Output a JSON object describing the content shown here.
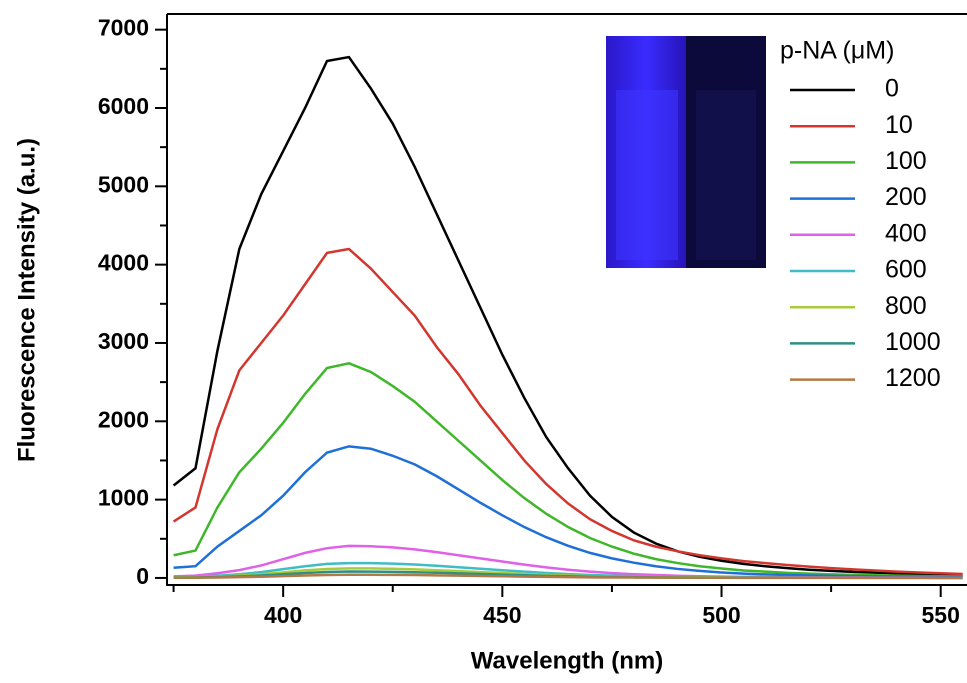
{
  "chart_data": {
    "type": "line",
    "xlabel": "Wavelength (nm)",
    "ylabel": "Fluorescence Intensity (a.u.)",
    "legend_title": "p-NA (μM)",
    "legend_position": "upper right",
    "xlim": [
      373.5,
      556
    ],
    "ylim": [
      -90,
      7200
    ],
    "xticks": [
      400,
      450,
      500,
      550
    ],
    "xminor_ticks": [
      375,
      425,
      475,
      525
    ],
    "yticks": [
      0,
      1000,
      2000,
      3000,
      4000,
      5000,
      6000,
      7000
    ],
    "yminor_ticks": [
      500,
      1500,
      2500,
      3500,
      4500,
      5500,
      6500
    ],
    "x": [
      375,
      380,
      385,
      390,
      395,
      400,
      405,
      410,
      415,
      420,
      425,
      430,
      435,
      440,
      445,
      450,
      455,
      460,
      465,
      470,
      475,
      480,
      485,
      490,
      495,
      500,
      505,
      510,
      515,
      520,
      525,
      530,
      535,
      540,
      545,
      550,
      555
    ],
    "series": [
      {
        "name": "0",
        "color": "#000000",
        "values": [
          1180,
          1400,
          2900,
          4200,
          4900,
          5450,
          6000,
          6600,
          6650,
          6250,
          5800,
          5250,
          4650,
          4050,
          3450,
          2850,
          2300,
          1800,
          1400,
          1050,
          780,
          580,
          440,
          340,
          270,
          220,
          180,
          150,
          125,
          105,
          90,
          78,
          68,
          58,
          50,
          44,
          38
        ]
      },
      {
        "name": "10",
        "color": "#d2372f",
        "values": [
          720,
          900,
          1900,
          2650,
          3000,
          3350,
          3750,
          4150,
          4200,
          3950,
          3650,
          3350,
          2950,
          2600,
          2200,
          1850,
          1500,
          1200,
          950,
          750,
          600,
          480,
          400,
          340,
          290,
          250,
          215,
          190,
          165,
          145,
          125,
          110,
          95,
          80,
          70,
          60,
          50
        ]
      },
      {
        "name": "100",
        "color": "#3fb72a",
        "values": [
          290,
          350,
          900,
          1350,
          1650,
          1980,
          2350,
          2680,
          2740,
          2630,
          2450,
          2250,
          2000,
          1750,
          1500,
          1250,
          1020,
          820,
          650,
          510,
          400,
          310,
          240,
          190,
          150,
          120,
          95,
          80,
          65,
          55,
          45,
          40,
          35,
          30,
          25,
          22,
          20
        ]
      },
      {
        "name": "200",
        "color": "#1f6fd8",
        "values": [
          130,
          150,
          400,
          600,
          800,
          1050,
          1350,
          1600,
          1680,
          1650,
          1560,
          1450,
          1300,
          1130,
          960,
          800,
          650,
          520,
          410,
          320,
          250,
          195,
          150,
          115,
          90,
          70,
          55,
          45,
          38,
          32,
          27,
          23,
          20,
          17,
          15,
          13,
          12
        ]
      },
      {
        "name": "400",
        "color": "#e060e8",
        "values": [
          20,
          30,
          60,
          100,
          160,
          240,
          320,
          380,
          410,
          405,
          390,
          365,
          330,
          290,
          250,
          210,
          170,
          135,
          105,
          80,
          62,
          48,
          37,
          28,
          22,
          17,
          14,
          12,
          10,
          9,
          8,
          7,
          6,
          5,
          5,
          4,
          4
        ]
      },
      {
        "name": "600",
        "color": "#3fbcc4",
        "values": [
          10,
          14,
          28,
          47,
          75,
          113,
          150,
          179,
          190,
          190,
          183,
          172,
          155,
          136,
          118,
          99,
          80,
          63,
          49,
          38,
          29,
          23,
          17,
          13,
          10,
          8,
          7,
          6,
          5,
          4,
          4,
          3,
          3,
          2,
          2,
          2,
          2
        ]
      },
      {
        "name": "800",
        "color": "#a6cc3a",
        "values": [
          6,
          9,
          18,
          30,
          48,
          72,
          96,
          114,
          123,
          122,
          117,
          110,
          99,
          87,
          75,
          63,
          51,
          41,
          32,
          24,
          19,
          14,
          11,
          8,
          7,
          5,
          4,
          4,
          3,
          3,
          2,
          2,
          2,
          2,
          2,
          1,
          1
        ]
      },
      {
        "name": "1000",
        "color": "#2e8f82",
        "values": [
          4,
          6,
          12,
          20,
          32,
          48,
          64,
          76,
          82,
          81,
          78,
          73,
          66,
          58,
          50,
          42,
          34,
          27,
          21,
          16,
          12,
          10,
          7,
          6,
          4,
          3,
          3,
          2,
          2,
          2,
          2,
          1,
          1,
          1,
          1,
          1,
          1
        ]
      },
      {
        "name": "1200",
        "color": "#b07a48",
        "values": [
          2,
          3,
          6,
          10,
          16,
          24,
          32,
          38,
          41,
          41,
          39,
          37,
          33,
          29,
          25,
          21,
          17,
          14,
          11,
          8,
          6,
          5,
          4,
          3,
          2,
          2,
          1,
          1,
          1,
          1,
          1,
          1,
          1,
          1,
          1,
          0,
          0
        ]
      }
    ]
  }
}
